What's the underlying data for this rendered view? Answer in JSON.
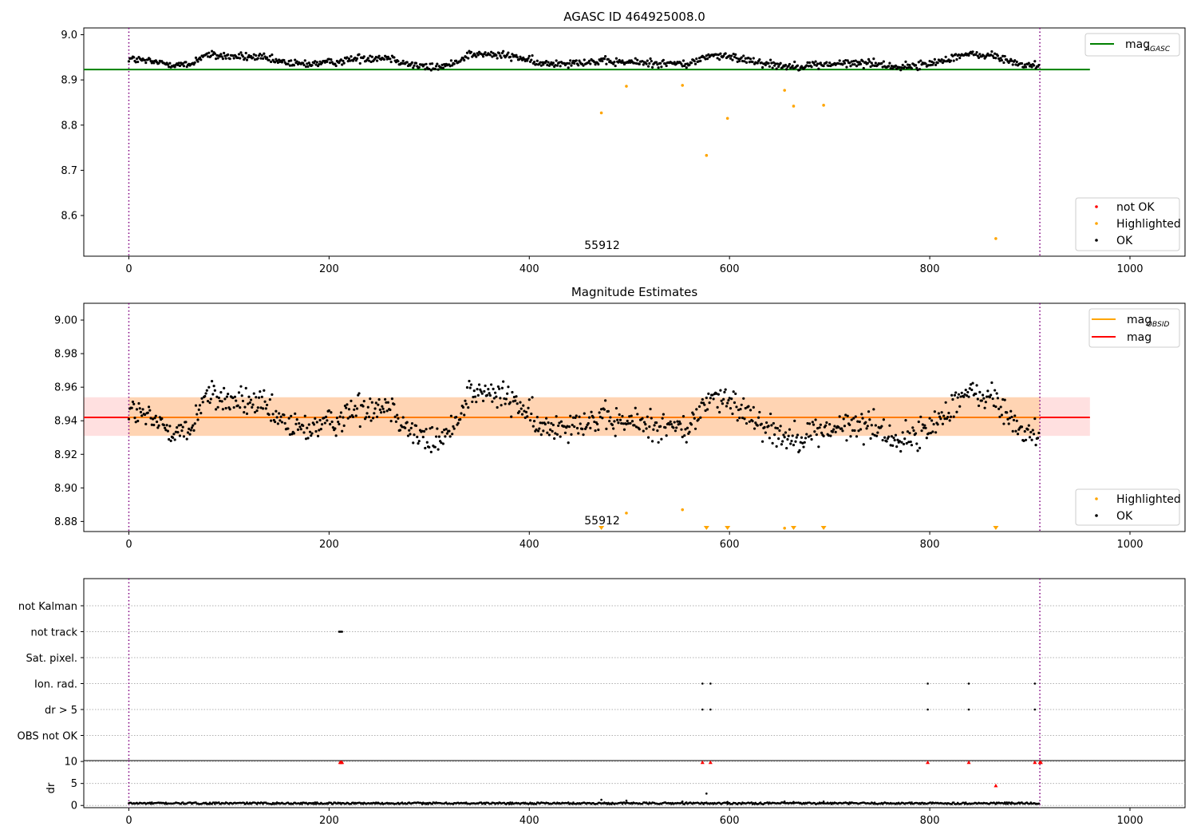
{
  "chart_data": [
    {
      "type": "scatter",
      "title": "AGASC ID 464925008.0",
      "xlabel": "",
      "ylabel": "",
      "xlim": [
        -45,
        1055
      ],
      "ylim": [
        8.51,
        9.015
      ],
      "xticks": [
        0,
        200,
        400,
        600,
        800,
        1000
      ],
      "yticks": [
        8.6,
        8.7,
        8.8,
        8.9,
        9.0
      ],
      "grid": false,
      "obsid_label": "55912",
      "obsid_label_x": 455,
      "obs_boundaries": [
        0,
        910
      ],
      "mag_agasc": 8.923,
      "ok_band": [
        8.918,
        8.972
      ],
      "series": [
        {
          "name": "not OK",
          "color": "#ff0000",
          "points": []
        },
        {
          "name": "Highlighted",
          "color": "#ffa500",
          "points": [
            [
              472,
              8.827
            ],
            [
              497,
              8.886
            ],
            [
              553,
              8.888
            ],
            [
              577,
              8.733
            ],
            [
              598,
              8.815
            ],
            [
              655,
              8.877
            ],
            [
              664,
              8.842
            ],
            [
              694,
              8.844
            ],
            [
              866,
              8.549
            ]
          ]
        },
        {
          "name": "OK",
          "color": "#000000",
          "n_points": 910
        }
      ],
      "lines": [
        {
          "name": "mag",
          "subscript": "AGASC",
          "color": "#008000",
          "y": 8.923
        }
      ],
      "legend": [
        {
          "position": "top-right",
          "entries": [
            {
              "label": "mag",
              "subscript": "AGASC",
              "kind": "line",
              "color": "#008000"
            }
          ]
        },
        {
          "position": "bottom-right",
          "entries": [
            {
              "label": "not OK",
              "kind": "dot",
              "color": "#ff0000"
            },
            {
              "label": "Highlighted",
              "kind": "dot",
              "color": "#ffa500"
            },
            {
              "label": "OK",
              "kind": "dot",
              "color": "#000000"
            }
          ]
        }
      ]
    },
    {
      "type": "scatter",
      "title": "Magnitude Estimates",
      "xlabel": "",
      "ylabel": "",
      "xlim": [
        -45,
        1055
      ],
      "ylim": [
        8.874,
        9.01
      ],
      "xticks": [
        0,
        200,
        400,
        600,
        800,
        1000
      ],
      "yticks": [
        8.88,
        8.9,
        8.92,
        8.94,
        8.96,
        8.98,
        9.0
      ],
      "grid": false,
      "obsid_label": "55912",
      "obsid_label_x": 455,
      "obs_boundaries": [
        0,
        910
      ],
      "mag_obsid": 8.942,
      "mag": 8.942,
      "band_obsid": [
        8.931,
        8.954
      ],
      "band_mag": [
        8.931,
        8.954
      ],
      "lines": [
        {
          "name": "mag",
          "subscript": "OBSID",
          "color": "#ffa500",
          "y": 8.942
        },
        {
          "name": "mag",
          "color": "#ff0000",
          "y": 8.942
        }
      ],
      "series": [
        {
          "name": "Highlighted",
          "color": "#ffa500",
          "points": [
            [
              497,
              8.885
            ],
            [
              553,
              8.887
            ],
            [
              655,
              8.876
            ]
          ]
        },
        {
          "name": "Highlighted",
          "color": "#ffa500",
          "marker": "triangle-down",
          "note": "below axis",
          "x": [
            472,
            577,
            598,
            664,
            694,
            866
          ]
        },
        {
          "name": "OK",
          "color": "#000000",
          "n_points": 910
        }
      ],
      "legend": [
        {
          "position": "top-right",
          "entries": [
            {
              "label": "mag",
              "subscript": "OBSID",
              "kind": "line",
              "color": "#ffa500"
            },
            {
              "label": "mag",
              "kind": "line",
              "color": "#ff0000"
            }
          ]
        },
        {
          "position": "bottom-right",
          "entries": [
            {
              "label": "Highlighted",
              "kind": "dot",
              "color": "#ffa500"
            },
            {
              "label": "OK",
              "kind": "dot",
              "color": "#000000"
            }
          ]
        }
      ]
    },
    {
      "type": "scatter",
      "title": "",
      "xlabel": "",
      "ylabel": "",
      "xlim": [
        -45,
        1055
      ],
      "obs_boundaries": [
        0,
        910
      ],
      "categories": [
        "not Kalman",
        "not track",
        "Sat. pixel.",
        "Ion. rad.",
        "dr > 5",
        "OBS not OK"
      ],
      "grid": true,
      "flags": [
        {
          "category": "not Kalman",
          "x": []
        },
        {
          "category": "not track",
          "x": [
            210,
            211,
            212,
            213
          ]
        },
        {
          "category": "Sat. pixel.",
          "x": []
        },
        {
          "category": "Ion. rad.",
          "x": [
            573,
            581,
            798,
            839,
            905
          ]
        },
        {
          "category": "dr > 5",
          "x": [
            573,
            581,
            798,
            839,
            905
          ]
        },
        {
          "category": "OBS not OK",
          "x": []
        }
      ]
    },
    {
      "type": "scatter",
      "title": "",
      "xlabel": "",
      "ylabel": "dr",
      "xlim": [
        -45,
        1055
      ],
      "ylim": [
        -0.5,
        10.2
      ],
      "xticks": [
        0,
        200,
        400,
        600,
        800,
        1000
      ],
      "yticks": [
        0,
        5,
        10
      ],
      "obs_boundaries": [
        0,
        910
      ],
      "series": [
        {
          "name": "dr",
          "color": "#000000",
          "n_points": 910,
          "outliers": [
            [
              472,
              1.3
            ],
            [
              497,
              1.1
            ],
            [
              553,
              0.9
            ],
            [
              577,
              2.7
            ],
            [
              598,
              0.8
            ],
            [
              655,
              0.9
            ],
            [
              664,
              0.8
            ],
            [
              694,
              0.9
            ]
          ]
        },
        {
          "name": "dr",
          "color": "#ff0000",
          "marker": "triangle-up",
          "points": [
            [
              211,
              9.8
            ],
            [
              212,
              9.8
            ],
            [
              213,
              9.8
            ],
            [
              573,
              9.8
            ],
            [
              581,
              9.8
            ],
            [
              798,
              9.8
            ],
            [
              839,
              9.8
            ],
            [
              866,
              4.5
            ],
            [
              905,
              9.8
            ],
            [
              910,
              9.8
            ],
            [
              911,
              9.8
            ]
          ]
        }
      ]
    }
  ]
}
